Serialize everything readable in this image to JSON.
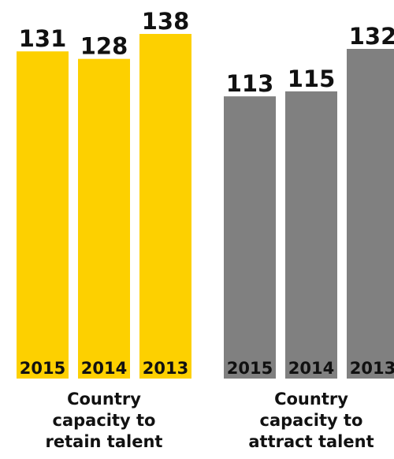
{
  "chart_data": [
    {
      "type": "bar",
      "title": "",
      "group_label_lines": [
        "Country",
        "capacity to",
        "retain talent"
      ],
      "categories": [
        "2015",
        "2014",
        "2013"
      ],
      "values": [
        131,
        128,
        138
      ],
      "color": "#fdd000",
      "ylim": [
        0,
        138
      ]
    },
    {
      "type": "bar",
      "title": "",
      "group_label_lines": [
        "Country",
        "capacity to",
        "attract talent"
      ],
      "categories": [
        "2015",
        "2014",
        "2013"
      ],
      "values": [
        113,
        115,
        132
      ],
      "color": "#808080",
      "ylim": [
        0,
        138
      ]
    }
  ]
}
